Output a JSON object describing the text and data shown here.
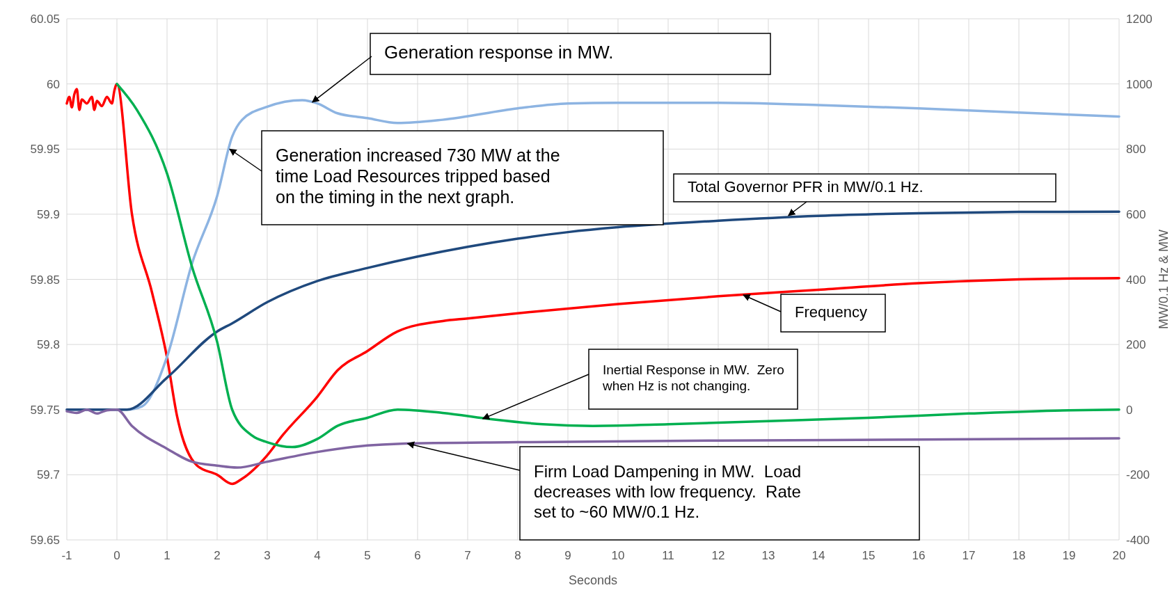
{
  "chart_data": {
    "type": "line",
    "xlabel": "Seconds",
    "y2label": "MW/0.1 Hz & MW",
    "xlim": [
      -1,
      20
    ],
    "xticks": [
      -1,
      0,
      1,
      2,
      3,
      4,
      5,
      6,
      7,
      8,
      9,
      10,
      11,
      12,
      13,
      14,
      15,
      16,
      17,
      18,
      19,
      20
    ],
    "ylim": [
      59.65,
      60.05
    ],
    "yticks": [
      59.65,
      59.7,
      59.75,
      59.8,
      59.85,
      59.9,
      59.95,
      60,
      60.05
    ],
    "y2lim": [
      -400,
      1200
    ],
    "y2ticks": [
      -400,
      -200,
      0,
      200,
      400,
      600,
      800,
      1000,
      1200
    ],
    "grid": true,
    "legend": false,
    "series": [
      {
        "color": "#ff0000",
        "x": [
          -1,
          -0.95,
          -0.9,
          -0.85,
          -0.8,
          -0.75,
          -0.7,
          -0.6,
          -0.5,
          -0.45,
          -0.4,
          -0.3,
          -0.2,
          -0.1,
          -0.05,
          0,
          0.3,
          0.7,
          1,
          1.2,
          1.6,
          2,
          2.3,
          2.5,
          3,
          3.3,
          4,
          4.4,
          5,
          5.6,
          6.5,
          7,
          8,
          10,
          12,
          14,
          16,
          18,
          20
        ],
        "values": [
          59.985,
          59.99,
          59.982,
          59.992,
          59.996,
          59.98,
          59.988,
          59.985,
          59.99,
          59.98,
          59.987,
          59.983,
          59.99,
          59.985,
          59.995,
          60,
          59.9,
          59.84,
          59.79,
          59.745,
          59.707,
          59.7,
          59.693,
          59.697,
          59.715,
          59.73,
          59.76,
          59.78,
          59.795,
          59.81,
          59.818,
          59.82,
          59.824,
          59.831,
          59.837,
          59.842,
          59.847,
          59.85,
          59.851
        ]
      },
      {
        "color": "#8db4e2",
        "axis": "y2",
        "x": [
          -1,
          0,
          0.2,
          0.5,
          1,
          1.5,
          2,
          2.3,
          2.5,
          3,
          3.7,
          4,
          4.4,
          5,
          5.6,
          6.5,
          8,
          9,
          10,
          12,
          14,
          16,
          18,
          20
        ],
        "values": [
          0,
          0,
          0,
          10,
          162,
          449,
          656,
          838,
          890,
          930,
          950,
          940,
          910,
          895,
          880,
          890,
          925,
          940,
          942,
          942,
          935,
          925,
          912,
          900
        ]
      },
      {
        "color": "#1f497d",
        "axis": "y2",
        "x": [
          -1,
          0,
          0.2,
          1,
          2,
          2.3,
          3,
          4,
          5,
          6,
          7,
          8,
          9,
          10,
          12,
          14,
          16,
          18,
          20
        ],
        "values": [
          0,
          0,
          0,
          98,
          240,
          265,
          330,
          395,
          435,
          470,
          500,
          525,
          545,
          560,
          580,
          595,
          603,
          607,
          608
        ]
      },
      {
        "color": "#00b050",
        "axis": "y2",
        "x": [
          0,
          0.4,
          1,
          1.5,
          2,
          2.3,
          2.7,
          3,
          3.5,
          4,
          4.4,
          5,
          5.6,
          6.5,
          7.5,
          8.5,
          9.5,
          11,
          13,
          15,
          17,
          19,
          20
        ],
        "values": [
          1000,
          920,
          725,
          438,
          208,
          0,
          -80,
          -100,
          -115,
          -90,
          -50,
          -25,
          0,
          -10,
          -30,
          -45,
          -50,
          -45,
          -35,
          -25,
          -12,
          -2,
          0
        ]
      },
      {
        "color": "#8064a2",
        "axis": "y2",
        "x": [
          -1,
          -0.8,
          -0.6,
          -0.4,
          -0.2,
          0,
          0.3,
          1,
          1.5,
          2,
          2.4,
          3,
          4,
          5,
          5.6,
          8,
          12,
          16,
          20
        ],
        "values": [
          -5,
          -10,
          0,
          -12,
          -2,
          0,
          -50,
          -120,
          -160,
          -172,
          -178,
          -160,
          -130,
          -110,
          -105,
          -100,
          -95,
          -92,
          -88
        ]
      }
    ],
    "annotations": [
      {
        "text": "Generation response in MW.",
        "x": 3.9,
        "y": 59.986
      },
      {
        "text": "Generation increased 730 MW at the time Load Resources tripped based on the timing in the next graph.",
        "x": 2.25,
        "y": 59.95
      },
      {
        "text": "Total Governor PFR in MW/0.1 Hz.",
        "x": 13.4,
        "y": 59.899
      },
      {
        "text": "Frequency",
        "x": 12.5,
        "y": 59.838
      },
      {
        "text": "Inertial Response in MW.  Zero when Hz is not changing.",
        "x": 7.3,
        "y": 59.743
      },
      {
        "text": "Firm Load Dampening in MW.  Load decreases with low frequency.  Rate set to ~60 MW/0.1 Hz.",
        "x": 5.8,
        "y": 59.724
      }
    ]
  }
}
